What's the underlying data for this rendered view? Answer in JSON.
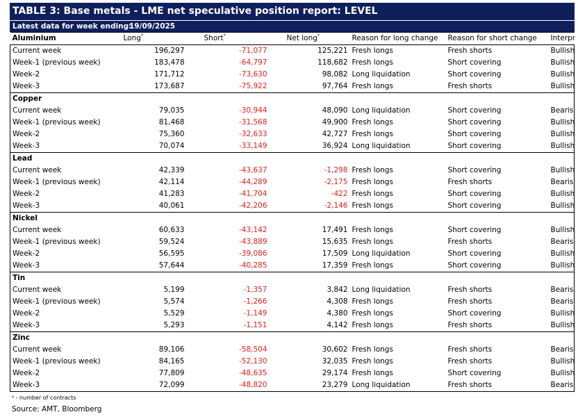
{
  "title": "TABLE 3: Base metals - LME net speculative position report: LEVEL",
  "latest": {
    "label": "Latest data for week ending:",
    "date": "19/09/2025"
  },
  "headers": {
    "long": "Long",
    "short": "Short",
    "net_long": "Net long",
    "reason_long": "Reason for long change",
    "reason_short": "Reason for short change",
    "interpretation": "Interpretation",
    "marker": "*"
  },
  "sections": [
    {
      "name": "Aluminium",
      "rows": [
        {
          "week": "Current week",
          "long": "196,297",
          "short": "-71,077",
          "net": "125,221",
          "rl": "Fresh longs",
          "rs": "Fresh shorts",
          "interp": "Bullish"
        },
        {
          "week": "Week-1 (previous week)",
          "long": "183,478",
          "short": "-64,797",
          "net": "118,682",
          "rl": "Fresh longs",
          "rs": "Short covering",
          "interp": "Bullish"
        },
        {
          "week": "Week-2",
          "long": "171,712",
          "short": "-73,630",
          "net": "98,082",
          "rl": "Long liquidation",
          "rs": "Short covering",
          "interp": "Bullish"
        },
        {
          "week": "Week-3",
          "long": "173,687",
          "short": "-75,922",
          "net": "97,764",
          "rl": "Fresh longs",
          "rs": "Fresh shorts",
          "interp": "Bullish"
        }
      ]
    },
    {
      "name": "Copper",
      "rows": [
        {
          "week": "Current week",
          "long": "79,035",
          "short": "-30,944",
          "net": "48,090",
          "rl": "Long liquidation",
          "rs": "Short covering",
          "interp": "Bearish"
        },
        {
          "week": "Week-1 (previous week)",
          "long": "81,468",
          "short": "-31,568",
          "net": "49,900",
          "rl": "Fresh longs",
          "rs": "Short covering",
          "interp": "Bullish"
        },
        {
          "week": "Week-2",
          "long": "75,360",
          "short": "-32,633",
          "net": "42,727",
          "rl": "Fresh longs",
          "rs": "Short covering",
          "interp": "Bullish"
        },
        {
          "week": "Week-3",
          "long": "70,074",
          "short": "-33,149",
          "net": "36,924",
          "rl": "Long liquidation",
          "rs": "Short covering",
          "interp": "Bullish"
        }
      ]
    },
    {
      "name": "Lead",
      "rows": [
        {
          "week": "Current week",
          "long": "42,339",
          "short": "-43,637",
          "net": "-1,298",
          "rl": "Fresh longs",
          "rs": "Short covering",
          "interp": "Bullish"
        },
        {
          "week": "Week-1 (previous week)",
          "long": "42,114",
          "short": "-44,289",
          "net": "-2,175",
          "rl": "Fresh longs",
          "rs": "Fresh shorts",
          "interp": "Bearish"
        },
        {
          "week": "Week-2",
          "long": "41,283",
          "short": "-41,704",
          "net": "-422",
          "rl": "Fresh longs",
          "rs": "Short covering",
          "interp": "Bullish"
        },
        {
          "week": "Week-3",
          "long": "40,061",
          "short": "-42,206",
          "net": "-2,146",
          "rl": "Fresh longs",
          "rs": "Short covering",
          "interp": "Bullish"
        }
      ]
    },
    {
      "name": "Nickel",
      "rows": [
        {
          "week": "Current week",
          "long": "60,633",
          "short": "-43,142",
          "net": "17,491",
          "rl": "Fresh longs",
          "rs": "Short covering",
          "interp": "Bullish"
        },
        {
          "week": "Week-1 (previous week)",
          "long": "59,524",
          "short": "-43,889",
          "net": "15,635",
          "rl": "Fresh longs",
          "rs": "Fresh shorts",
          "interp": "Bearish"
        },
        {
          "week": "Week-2",
          "long": "56,595",
          "short": "-39,086",
          "net": "17,509",
          "rl": "Long liquidation",
          "rs": "Short covering",
          "interp": "Bullish"
        },
        {
          "week": "Week-3",
          "long": "57,644",
          "short": "-40,285",
          "net": "17,359",
          "rl": "Fresh longs",
          "rs": "Short covering",
          "interp": "Bullish"
        }
      ]
    },
    {
      "name": "Tin",
      "rows": [
        {
          "week": "Current week",
          "long": "5,199",
          "short": "-1,357",
          "net": "3,842",
          "rl": "Long liquidation",
          "rs": "Fresh shorts",
          "interp": "Bearish"
        },
        {
          "week": "Week-1 (previous week)",
          "long": "5,574",
          "short": "-1,266",
          "net": "4,308",
          "rl": "Fresh longs",
          "rs": "Fresh shorts",
          "interp": "Bearish"
        },
        {
          "week": "Week-2",
          "long": "5,529",
          "short": "-1,149",
          "net": "4,380",
          "rl": "Fresh longs",
          "rs": "Short covering",
          "interp": "Bullish"
        },
        {
          "week": "Week-3",
          "long": "5,293",
          "short": "-1,151",
          "net": "4,142",
          "rl": "Fresh longs",
          "rs": "Fresh shorts",
          "interp": "Bullish"
        }
      ]
    },
    {
      "name": "Zinc",
      "rows": [
        {
          "week": "Current week",
          "long": "89,106",
          "short": "-58,504",
          "net": "30,602",
          "rl": "Fresh longs",
          "rs": "Fresh shorts",
          "interp": "Bearish"
        },
        {
          "week": "Week-1 (previous week)",
          "long": "84,165",
          "short": "-52,130",
          "net": "32,035",
          "rl": "Fresh longs",
          "rs": "Fresh shorts",
          "interp": "Bullish"
        },
        {
          "week": "Week-2",
          "long": "77,809",
          "short": "-48,635",
          "net": "29,174",
          "rl": "Fresh longs",
          "rs": "Short covering",
          "interp": "Bullish"
        },
        {
          "week": "Week-3",
          "long": "72,099",
          "short": "-48,820",
          "net": "23,279",
          "rl": "Long liquidation",
          "rs": "Fresh shorts",
          "interp": "Bearish"
        }
      ]
    }
  ],
  "footnote": {
    "marker": "*",
    "text": " - number of contracts"
  },
  "source": "Source: AMT, Bloomberg",
  "colors": {
    "header_bg": "#0e1f5c",
    "negative": "#e0201b"
  }
}
